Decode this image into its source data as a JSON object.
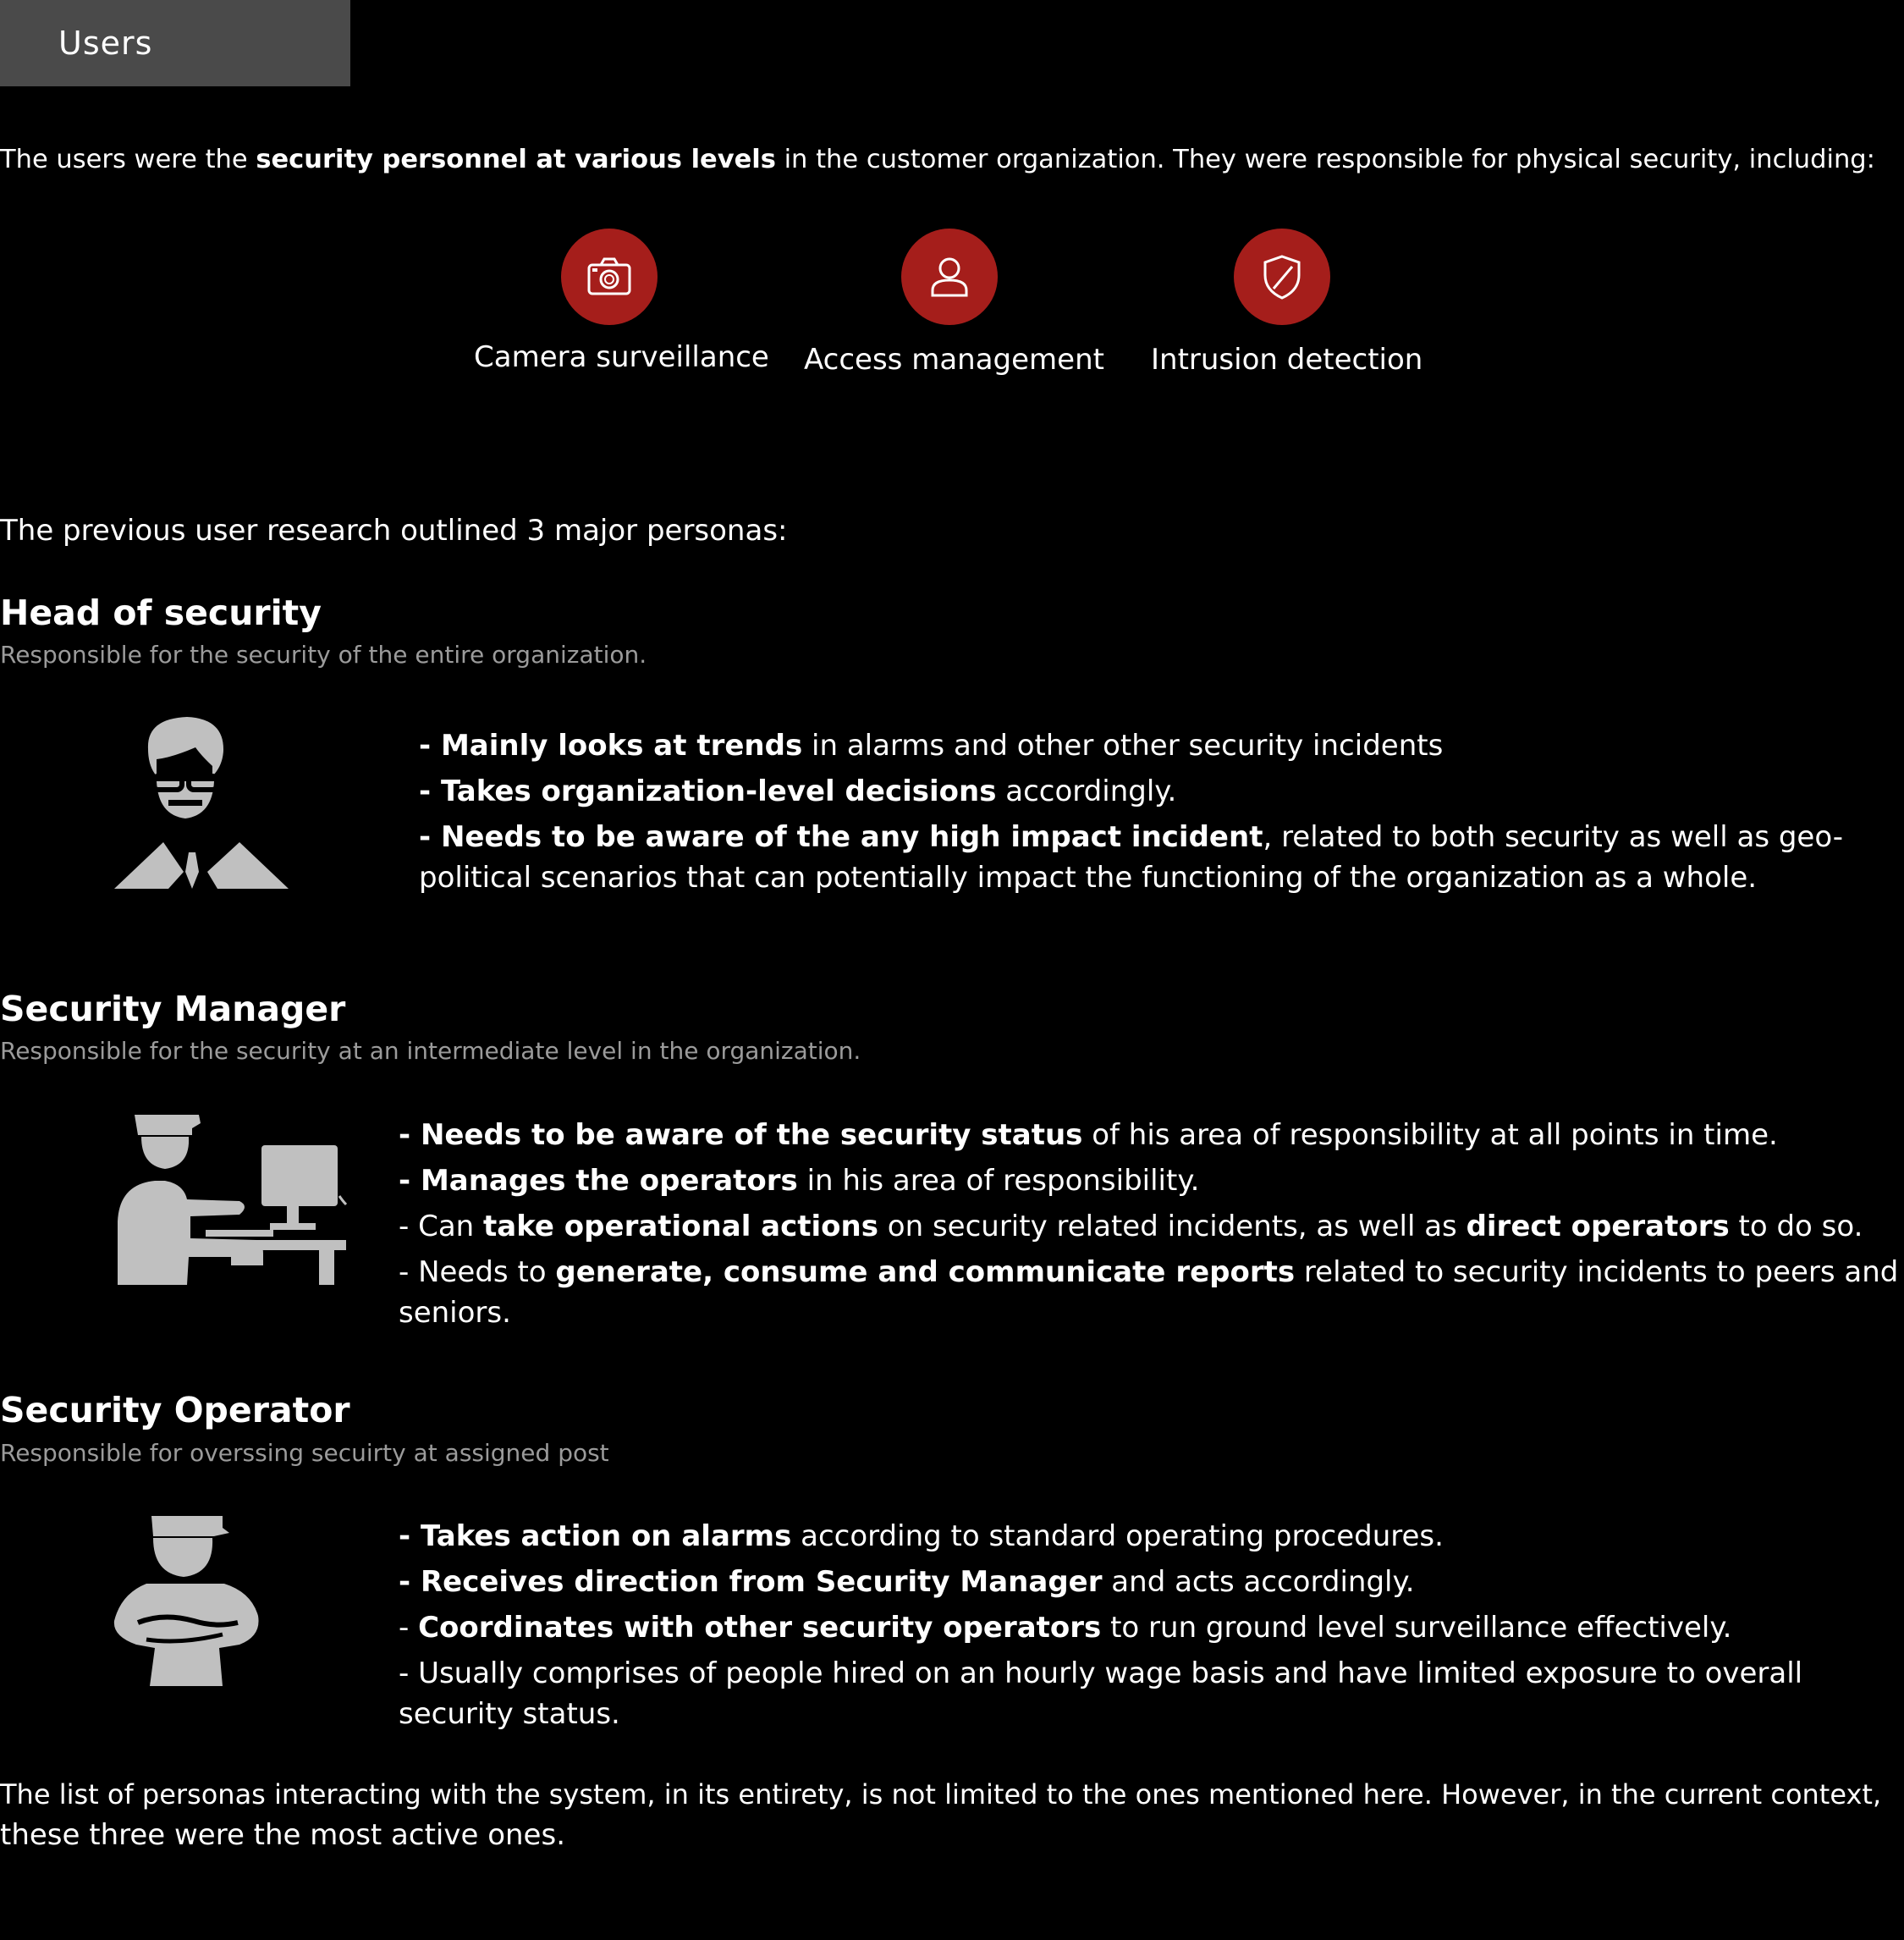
{
  "tab": {
    "label": "Users"
  },
  "intro": {
    "pre": "The users were the ",
    "bold": "security personnel at various levels",
    "post": " in the customer organization. They were responsible for physical security, including:"
  },
  "features": [
    {
      "icon": "camera-icon",
      "label": "Camera surveillance"
    },
    {
      "icon": "user-icon",
      "label": "Access management"
    },
    {
      "icon": "shield-icon",
      "label": "Intrusion detection"
    }
  ],
  "personas_intro": "The previous user research outlined 3 major personas:",
  "personas": [
    {
      "title": "Head of security",
      "subtitle": "Responsible for the security of the entire organization.",
      "icon": "head-of-security-icon",
      "bullets": [
        {
          "dash": "-  ",
          "bold": "Mainly looks at trends",
          "rest": " in alarms and other other security incidents"
        },
        {
          "dash": "-  ",
          "bold": "Takes organization-level decisions",
          "rest": " accordingly."
        },
        {
          "dash": "-  ",
          "bold": "Needs to be aware of the any high impact incident",
          "rest": ", related to both security as well as geo-",
          "cont": "political scenarios that can potentially impact the functioning of the organization as a whole."
        }
      ]
    },
    {
      "title": "Security Manager",
      "subtitle": "Responsible for the security at an intermediate level in the organization.",
      "icon": "security-manager-icon",
      "bullets": [
        {
          "dash": "-  ",
          "bold": "Needs to be aware of the security status",
          "rest": " of his area of responsibility at all points in time."
        },
        {
          "dash": "-  ",
          "bold": "Manages the operators",
          "rest": " in his area of responsibility."
        },
        {
          "dash": "-  Can ",
          "bold": "take operational actions",
          "rest": " on security related incidents, as well as ",
          "bold2": "direct operators",
          "rest2": " to do so."
        },
        {
          "dash": "-  Needs to ",
          "bold": "generate, consume  and communicate reports",
          "rest": " related to security incidents to peers and",
          "cont": "seniors."
        }
      ]
    },
    {
      "title": "Security Operator",
      "subtitle": "Responsible for overssing secuirty at assigned post",
      "icon": "security-operator-icon",
      "bullets": [
        {
          "dash": "-  ",
          "bold": "Takes action on alarms",
          "rest": "  according to standard operating procedures."
        },
        {
          "dash": "-  ",
          "bold": "Receives direction from Security Manager",
          "rest": " and acts accordingly."
        },
        {
          "dash": "-  ",
          "bold": "Coordinates with other security operators",
          "rest": " to run ground level surveillance effectively."
        },
        {
          "dash": "-  Usually comprises of people hired on an hourly wage basis and have limited exposure to overall",
          "bold": "",
          "rest": "",
          "cont": "security status."
        }
      ]
    }
  ],
  "closing": [
    "The list of personas interacting with the system, in its entirety, is not limited to the ones mentioned here. However, in the current context,",
    "these three were the most active ones."
  ],
  "colors": {
    "accent": "#a51e1b",
    "tab_bg": "#4a4a4a",
    "subtitle": "#9b9b9b",
    "glyph": "#c0c0c0"
  }
}
